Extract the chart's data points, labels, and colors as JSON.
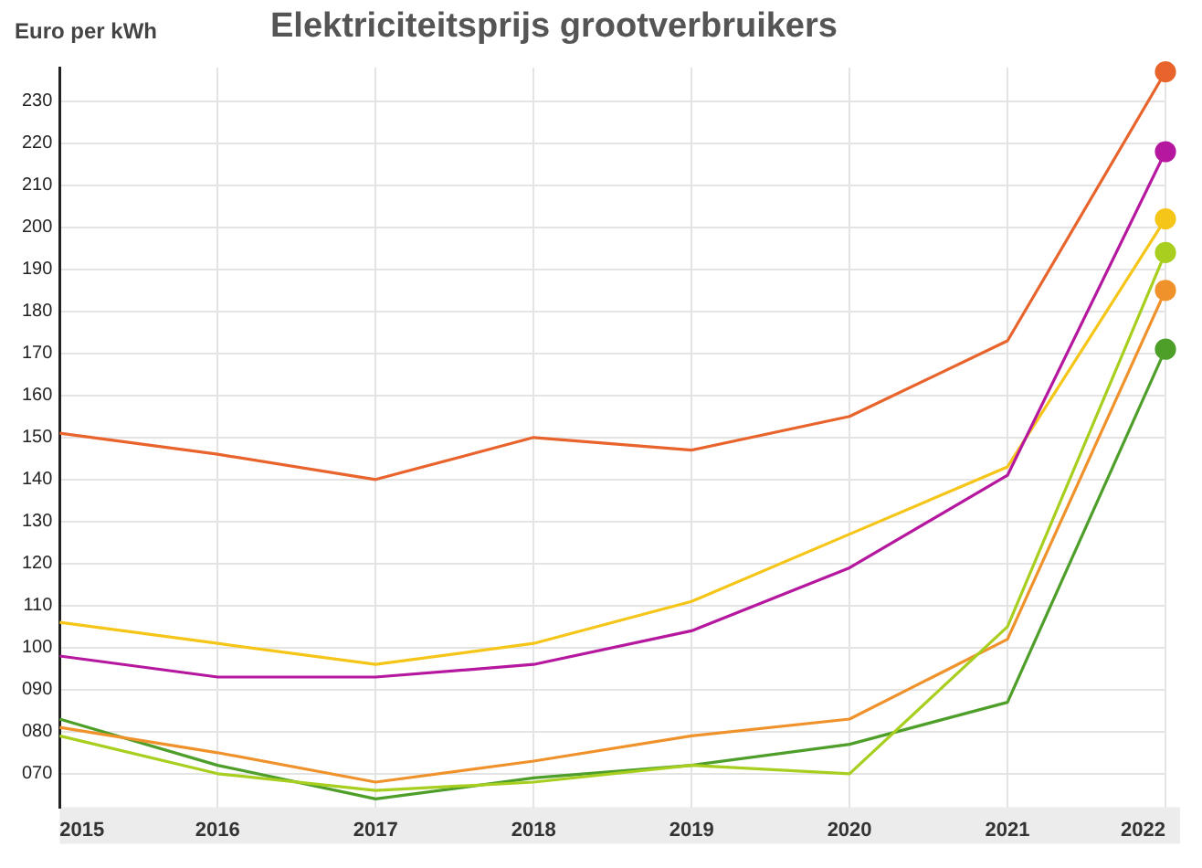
{
  "chart_data": {
    "type": "line",
    "title": "Elektriciteitsprijs grootverbruikers",
    "ylabel": "Euro per kWh",
    "categories": [
      "2015",
      "2016",
      "2017",
      "2018",
      "2019",
      "2020",
      "2021",
      "2022"
    ],
    "series": [
      {
        "color": "#e8642c",
        "values": [
          151,
          146,
          140,
          150,
          147,
          155,
          173,
          237
        ]
      },
      {
        "color": "#b5179e",
        "values": [
          98,
          93,
          93,
          96,
          104,
          119,
          141,
          218
        ]
      },
      {
        "color": "#f5c518",
        "values": [
          106,
          101,
          96,
          101,
          111,
          127,
          143,
          202
        ]
      },
      {
        "color": "#a8cf1f",
        "values": [
          79,
          70,
          66,
          68,
          72,
          70,
          105,
          194
        ]
      },
      {
        "color": "#f0922c",
        "values": [
          81,
          75,
          68,
          73,
          79,
          83,
          102,
          185
        ]
      },
      {
        "color": "#4e9f2a",
        "values": [
          83,
          72,
          64,
          69,
          72,
          77,
          87,
          171
        ]
      }
    ],
    "ylim": [
      62,
      238
    ],
    "yticks": [
      {
        "value": 70,
        "label": "070"
      },
      {
        "value": 80,
        "label": "080"
      },
      {
        "value": 90,
        "label": "090"
      },
      100,
      110,
      120,
      130,
      140,
      150,
      160,
      170,
      180,
      190,
      200,
      210,
      220,
      230
    ],
    "grid": true,
    "legend": false,
    "line_style": "solid"
  }
}
